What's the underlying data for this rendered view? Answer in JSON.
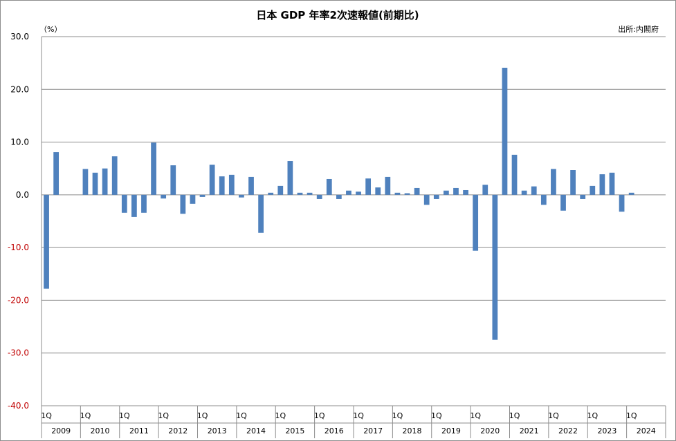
{
  "chart_data": {
    "type": "bar",
    "title": "日本  GDP 年率2次速報値(前期比)",
    "source": "出所:内閣府",
    "unit": "（%）",
    "ylim": [
      -40,
      30
    ],
    "yticks": [
      "30.0",
      "20.0",
      "10.0",
      "0.0",
      "-10.0",
      "-20.0",
      "-30.0",
      "-40.0"
    ],
    "ytick_values": [
      30,
      20,
      10,
      0,
      -10,
      -20,
      -30,
      -40
    ],
    "ytick_colors": [
      "#000000",
      "#000000",
      "#000000",
      "#000000",
      "#c00000",
      "#c00000",
      "#c00000",
      "#c00000"
    ],
    "grid": true,
    "bar_color": "#4f81bd",
    "start_year": 2009,
    "quarter_label": "1Q",
    "years": [
      "2009",
      "2010",
      "2011",
      "2012",
      "2013",
      "2014",
      "2015",
      "2016",
      "2017",
      "2018",
      "2019",
      "2020",
      "2021",
      "2022",
      "2023",
      "2024"
    ],
    "values": [
      -17.8,
      8.1,
      0.0,
      0.0,
      4.9,
      4.2,
      5.0,
      7.3,
      -3.4,
      -4.2,
      -3.4,
      9.9,
      -0.7,
      5.6,
      -3.6,
      -1.7,
      -0.4,
      5.7,
      3.5,
      3.8,
      -0.5,
      3.4,
      -7.2,
      0.4,
      1.7,
      6.4,
      0.4,
      0.4,
      -0.8,
      3.0,
      -0.8,
      0.8,
      0.6,
      3.1,
      1.4,
      3.4,
      0.4,
      0.3,
      1.3,
      -1.9,
      -0.8,
      0.8,
      1.3,
      0.9,
      -10.6,
      1.9,
      -27.5,
      24.1,
      7.6,
      0.8,
      1.6,
      -1.9,
      4.9,
      -3.0,
      4.7,
      -0.8,
      1.7,
      3.9,
      4.2,
      -3.2,
      0.4
    ]
  }
}
